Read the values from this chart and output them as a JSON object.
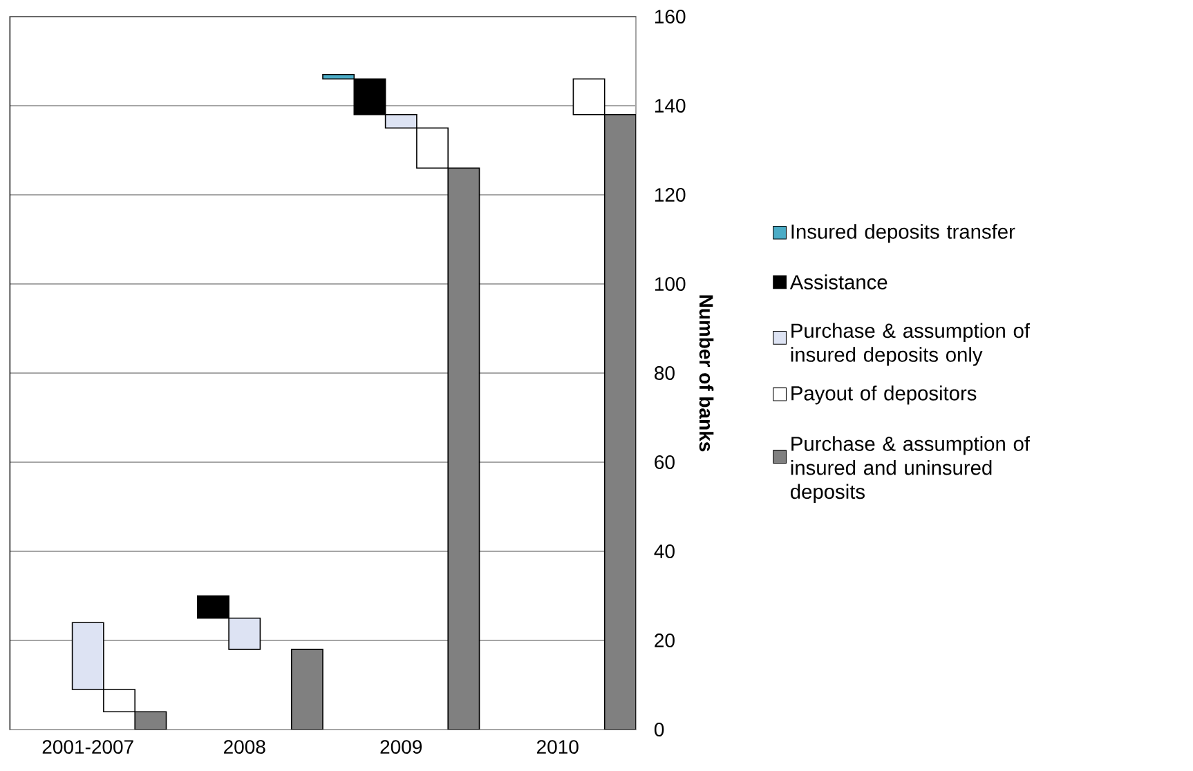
{
  "chart_data": {
    "type": "bar",
    "ylabel": "Number of banks",
    "categories": [
      null,
      null,
      "2001-2007",
      null,
      null,
      null,
      null,
      "2008",
      null,
      null,
      null,
      null,
      "2009",
      null,
      null,
      null,
      null,
      "2010",
      null,
      null
    ],
    "series": [
      {
        "name": "Insured deposits transfer",
        "color": "#4bacc6",
        "values": [
          null,
          null,
          null,
          null,
          null,
          null,
          null,
          null,
          null,
          null,
          1,
          null,
          null,
          null,
          null,
          null,
          null,
          null,
          null,
          null
        ],
        "base": [
          null,
          null,
          null,
          null,
          null,
          null,
          null,
          null,
          null,
          null,
          146,
          null,
          null,
          null,
          null,
          null,
          null,
          null,
          null,
          null
        ]
      },
      {
        "name": "Assistance",
        "color": "#000000",
        "values": [
          null,
          null,
          null,
          null,
          null,
          null,
          5,
          null,
          null,
          null,
          null,
          8,
          null,
          null,
          null,
          null,
          null,
          null,
          null,
          null
        ],
        "base": [
          null,
          null,
          null,
          null,
          null,
          null,
          25,
          null,
          null,
          null,
          null,
          138,
          null,
          null,
          null,
          null,
          null,
          null,
          null,
          null
        ]
      },
      {
        "name": "Purchase & assumption of insured deposits only",
        "color": "#dde3f3",
        "values": [
          null,
          null,
          15,
          null,
          null,
          null,
          null,
          7,
          null,
          null,
          null,
          null,
          3,
          null,
          null,
          null,
          null,
          null,
          null,
          null
        ],
        "base": [
          null,
          null,
          9,
          null,
          null,
          null,
          null,
          18,
          null,
          null,
          null,
          null,
          135,
          null,
          null,
          null,
          null,
          null,
          null,
          null
        ]
      },
      {
        "name": "Payout of depositors",
        "color": "#ffffff",
        "values": [
          null,
          null,
          null,
          5,
          null,
          null,
          null,
          null,
          null,
          null,
          null,
          null,
          null,
          9,
          null,
          null,
          null,
          null,
          8,
          null
        ],
        "base": [
          null,
          null,
          null,
          4,
          null,
          null,
          null,
          null,
          null,
          null,
          null,
          null,
          null,
          126,
          null,
          null,
          null,
          null,
          138,
          null
        ]
      },
      {
        "name": "Purchase & assumption of insured and uninsured deposits",
        "color": "#808080",
        "values": [
          null,
          null,
          null,
          null,
          4,
          null,
          null,
          null,
          null,
          18,
          null,
          null,
          null,
          null,
          126,
          null,
          null,
          null,
          null,
          138
        ],
        "base": [
          null,
          null,
          null,
          null,
          0,
          null,
          null,
          null,
          null,
          0,
          null,
          null,
          null,
          null,
          0,
          null,
          null,
          null,
          null,
          0
        ]
      }
    ],
    "ylim": [
      0,
      160
    ],
    "yticks": [
      0,
      20,
      40,
      60,
      80,
      100,
      120,
      140,
      160
    ],
    "grid": "y",
    "legend": "right"
  }
}
